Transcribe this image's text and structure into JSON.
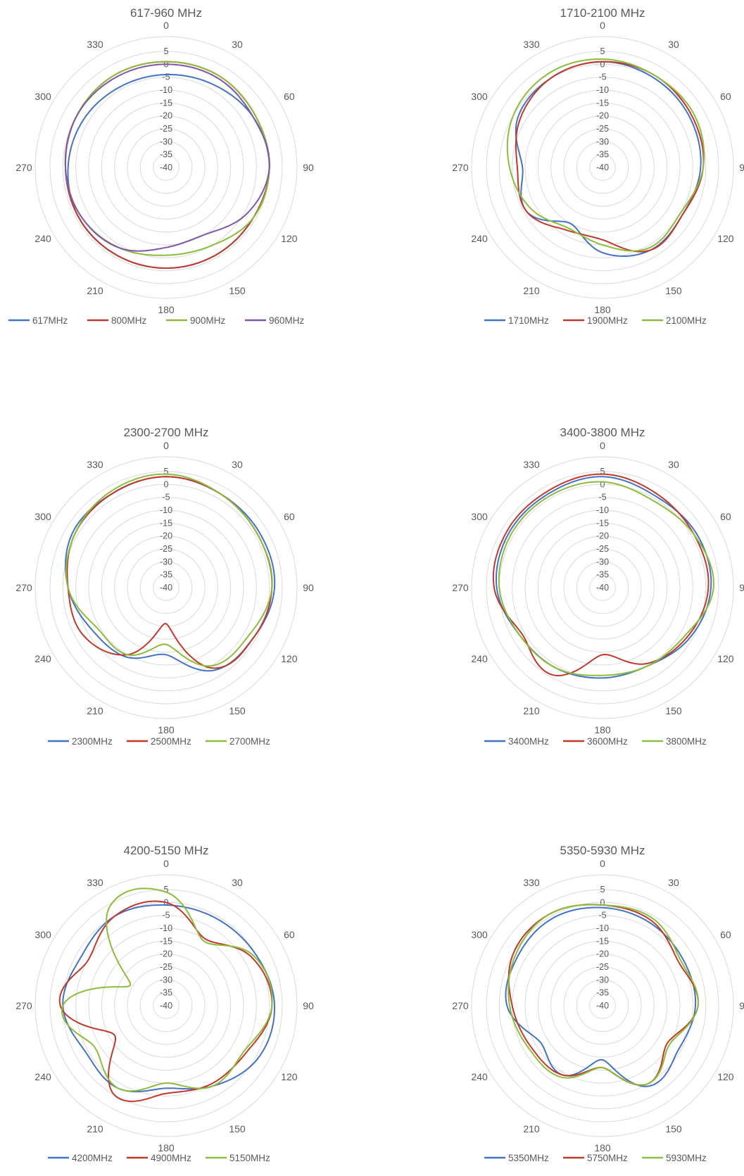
{
  "colors": {
    "blue": "#4472c4",
    "red": "#c0392b",
    "green": "#8dbb3c",
    "purple": "#7e57a8",
    "grid": "#d9d9d9",
    "text": "#595959"
  },
  "chart_data": [
    {
      "type": "radar",
      "title": "617-960 MHz",
      "angle_ticks": [
        "0",
        "30",
        "60",
        "90",
        "120",
        "150",
        "180",
        "210",
        "240",
        "270",
        "300",
        "330"
      ],
      "radial_ticks": [
        "5",
        "0",
        "-5",
        "-10",
        "-15",
        "-20",
        "-25",
        "-30",
        "-35",
        "-40"
      ],
      "rlim": [
        -40,
        5
      ],
      "angles_deg": [
        0,
        30,
        60,
        90,
        120,
        150,
        180,
        210,
        240,
        270,
        300,
        330
      ],
      "legend": "bottom",
      "series": [
        {
          "name": "617MHz",
          "color": "#4472c4",
          "values": [
            -4,
            -3,
            -1,
            0,
            -1,
            -1,
            -1,
            -1,
            -1,
            -2,
            -3,
            -4
          ]
        },
        {
          "name": "800MHz",
          "color": "#c0392b",
          "values": [
            1,
            1,
            0,
            0,
            -1,
            -1,
            -1,
            -1,
            -1,
            -1,
            0,
            1
          ]
        },
        {
          "name": "900MHz",
          "color": "#8dbb3c",
          "values": [
            1,
            1,
            0,
            0,
            -1,
            -5,
            -6,
            -4,
            -2,
            -1,
            0,
            1
          ]
        },
        {
          "name": "960MHz",
          "color": "#7e57a8",
          "values": [
            0,
            0,
            -1,
            0,
            -4,
            -10,
            -9,
            -4,
            -2,
            -1,
            0,
            0
          ]
        }
      ]
    },
    {
      "type": "radar",
      "title": "1710-2100 MHz",
      "angle_ticks": [
        "0",
        "30",
        "60",
        "90",
        "120",
        "150",
        "180",
        "210",
        "240",
        "270",
        "300",
        "330"
      ],
      "radial_ticks": [
        "5",
        "0",
        "-5",
        "-10",
        "-15",
        "-20",
        "-25",
        "-30",
        "-35",
        "-40"
      ],
      "rlim": [
        -40,
        5
      ],
      "angles_deg": [
        0,
        30,
        60,
        90,
        120,
        150,
        180,
        210,
        240,
        270,
        300,
        330
      ],
      "legend": "bottom",
      "series": [
        {
          "name": "1710MHz",
          "color": "#4472c4",
          "values": [
            1,
            0,
            -1,
            -2,
            -4,
            -3,
            -7,
            -15,
            -6,
            -9,
            -2,
            0
          ]
        },
        {
          "name": "1900MHz",
          "color": "#c0392b",
          "values": [
            1,
            1,
            0,
            -1,
            -4,
            -3,
            -12,
            -12,
            -6,
            -7,
            -3,
            0
          ]
        },
        {
          "name": "2100MHz",
          "color": "#8dbb3c",
          "values": [
            2,
            1,
            1,
            -1,
            -5,
            -4,
            -10,
            -13,
            -8,
            -4,
            0,
            2
          ]
        }
      ]
    },
    {
      "type": "radar",
      "title": "2300-2700 MHz",
      "angle_ticks": [
        "0",
        "30",
        "60",
        "90",
        "120",
        "150",
        "180",
        "210",
        "240",
        "270",
        "300",
        "330"
      ],
      "radial_ticks": [
        "5",
        "0",
        "-5",
        "-10",
        "-15",
        "-20",
        "-25",
        "-30",
        "-35",
        "-40"
      ],
      "rlim": [
        -40,
        5
      ],
      "angles_deg": [
        0,
        30,
        60,
        90,
        120,
        150,
        180,
        210,
        240,
        270,
        300,
        330
      ],
      "legend": "bottom",
      "series": [
        {
          "name": "2300MHz",
          "color": "#4472c4",
          "values": [
            3,
            2,
            2,
            2,
            -1,
            -3,
            -14,
            -9,
            -7,
            -2,
            2,
            2
          ]
        },
        {
          "name": "2500MHz",
          "color": "#c0392b",
          "values": [
            3,
            2,
            1,
            1,
            -1,
            -4,
            -26,
            -10,
            -3,
            -2,
            1,
            2
          ]
        },
        {
          "name": "2700MHz",
          "color": "#8dbb3c",
          "values": [
            4,
            2,
            1,
            1,
            -3,
            -5,
            -18,
            -10,
            -9,
            -2,
            1,
            3
          ]
        }
      ]
    },
    {
      "type": "radar",
      "title": "3400-3800 MHz",
      "angle_ticks": [
        "0",
        "30",
        "60",
        "90",
        "120",
        "150",
        "180",
        "210",
        "240",
        "270",
        "300",
        "330"
      ],
      "radial_ticks": [
        "5",
        "0",
        "-5",
        "-10",
        "-15",
        "-20",
        "-25",
        "-30",
        "-35",
        "-40"
      ],
      "rlim": [
        -40,
        5
      ],
      "angles_deg": [
        0,
        30,
        60,
        90,
        120,
        150,
        180,
        210,
        240,
        270,
        300,
        330
      ],
      "legend": "bottom",
      "series": [
        {
          "name": "3400MHz",
          "color": "#4472c4",
          "values": [
            3,
            1,
            2,
            2,
            -1,
            -5,
            -5,
            -4,
            -3,
            1,
            2,
            2
          ]
        },
        {
          "name": "3600MHz",
          "color": "#c0392b",
          "values": [
            4,
            2,
            1,
            1,
            -2,
            -6,
            -14,
            -1,
            -4,
            2,
            3,
            3
          ]
        },
        {
          "name": "3800MHz",
          "color": "#8dbb3c",
          "values": [
            1,
            -1,
            1,
            3,
            -3,
            -5,
            -6,
            -4,
            -3,
            0,
            1,
            1
          ]
        }
      ]
    },
    {
      "type": "radar",
      "title": "4200-5150 MHz",
      "angle_ticks": [
        "0",
        "30",
        "60",
        "90",
        "120",
        "150",
        "180",
        "210",
        "240",
        "270",
        "300",
        "330"
      ],
      "radial_ticks": [
        "5",
        "0",
        "-5",
        "-10",
        "-15",
        "-20",
        "-25",
        "-30",
        "-35",
        "-40"
      ],
      "rlim": [
        -40,
        5
      ],
      "angles_deg": [
        0,
        30,
        60,
        90,
        120,
        150,
        180,
        210,
        240,
        270,
        300,
        330
      ],
      "legend": "bottom",
      "series": [
        {
          "name": "4200MHz",
          "color": "#4472c4",
          "values": [
            -1,
            -1,
            0,
            2,
            1,
            -4,
            -8,
            -3,
            -4,
            0,
            -2,
            0
          ]
        },
        {
          "name": "4900MHz",
          "color": "#c0392b",
          "values": [
            0,
            -10,
            -2,
            1,
            -4,
            -5,
            -6,
            0,
            -17,
            1,
            -5,
            0
          ]
        },
        {
          "name": "5150MHz",
          "color": "#8dbb3c",
          "values": [
            4,
            -11,
            -1,
            1,
            -5,
            -4,
            -10,
            -3,
            -8,
            0,
            -24,
            4
          ]
        }
      ]
    },
    {
      "type": "radar",
      "title": "5350-5930 MHz",
      "angle_ticks": [
        "0",
        "30",
        "60",
        "90",
        "120",
        "150",
        "180",
        "210",
        "240",
        "270",
        "300",
        "330"
      ],
      "radial_ticks": [
        "5",
        "0",
        "-5",
        "-10",
        "-15",
        "-20",
        "-25",
        "-30",
        "-35",
        "-40"
      ],
      "rlim": [
        -40,
        5
      ],
      "angles_deg": [
        0,
        30,
        60,
        90,
        120,
        150,
        180,
        210,
        240,
        270,
        300,
        330
      ],
      "legend": "bottom",
      "series": [
        {
          "name": "5350MHz",
          "color": "#4472c4",
          "values": [
            -2,
            -3,
            -4,
            -4,
            -6,
            -4,
            -19,
            -9,
            -12,
            -3,
            -2,
            -1
          ]
        },
        {
          "name": "5750MHz",
          "color": "#c0392b",
          "values": [
            -1,
            -2,
            -6,
            -3,
            -11,
            -5,
            -16,
            -9,
            -8,
            -5,
            0,
            1
          ]
        },
        {
          "name": "5930MHz",
          "color": "#8dbb3c",
          "values": [
            -1,
            -1,
            -5,
            -3,
            -10,
            -5,
            -16,
            -8,
            -7,
            -4,
            -1,
            1
          ]
        }
      ]
    }
  ]
}
